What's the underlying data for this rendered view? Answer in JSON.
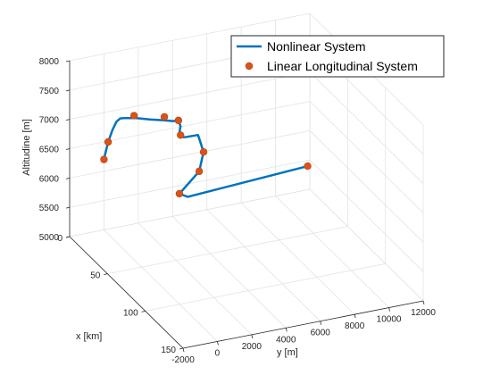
{
  "chart_data": {
    "type": "line",
    "projection": "3d",
    "xlabel": "x [km]",
    "ylabel": "y [m]",
    "zlabel": "Altitudine [m]",
    "xlim": [
      0,
      150
    ],
    "ylim": [
      -2000,
      12000
    ],
    "zlim": [
      5000,
      8000
    ],
    "xticks": [
      0,
      50,
      100,
      150
    ],
    "yticks": [
      -2000,
      0,
      2000,
      4000,
      6000,
      8000,
      10000,
      12000
    ],
    "zticks": [
      5000,
      5500,
      6000,
      6500,
      7000,
      7500,
      8000
    ],
    "grid": true,
    "legend_position": "top-right",
    "series": [
      {
        "name": "Nonlinear System",
        "style": "line",
        "color": "#0072BD",
        "x": [
          0,
          1,
          2,
          3,
          3.5,
          4,
          5,
          5,
          5,
          5,
          5.5,
          6,
          6,
          6,
          6.5,
          7,
          8,
          9,
          11,
          13
        ],
        "y": [
          0,
          200,
          400,
          600,
          800,
          1000,
          1600,
          2500,
          3200,
          3800,
          4100,
          4200,
          4100,
          4400,
          5200,
          5500,
          5200,
          4000,
          4400,
          11300
        ],
        "z": [
          6200,
          6500,
          6700,
          6850,
          6900,
          6900,
          6880,
          6800,
          6750,
          6700,
          6700,
          6600,
          6450,
          6400,
          6400,
          6100,
          5800,
          5500,
          5450,
          5600
        ]
      },
      {
        "name": "Linear Longitudinal System",
        "style": "markers",
        "color": "#D95319",
        "x": [
          0,
          1,
          3.5,
          5,
          5.5,
          6,
          7,
          8,
          9,
          13
        ],
        "y": [
          0,
          200,
          1600,
          3300,
          4100,
          4200,
          5500,
          5200,
          4000,
          11300
        ],
        "z": [
          6200,
          6500,
          6900,
          6800,
          6700,
          6450,
          6100,
          5800,
          5500,
          5600
        ]
      }
    ]
  }
}
